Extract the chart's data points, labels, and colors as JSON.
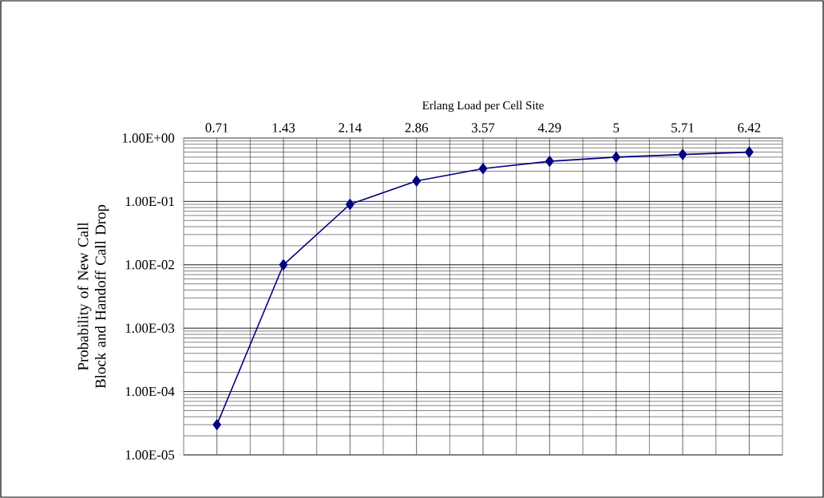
{
  "chart_data": {
    "type": "line",
    "xlabel": "Erlang Load per Cell Site",
    "ylabel": "Probability of New Call Block and Handoff Call Drop",
    "categories": [
      "0.71",
      "1.43",
      "2.14",
      "2.86",
      "3.57",
      "4.29",
      "5",
      "5.71",
      "6.42"
    ],
    "series": [
      {
        "color": "#000080",
        "values": [
          3e-05,
          0.01,
          0.09,
          0.21,
          0.33,
          0.43,
          0.5,
          0.55,
          0.6
        ]
      }
    ],
    "log": "y",
    "ylim": [
      1e-05,
      1
    ],
    "yticks": [
      {
        "value": 1e-05,
        "label": "1.00E-05"
      },
      {
        "value": 0.0001,
        "label": "1.00E-04"
      },
      {
        "value": 0.001,
        "label": "1.00E-03"
      },
      {
        "value": 0.01,
        "label": "1.00E-02"
      },
      {
        "value": 0.1,
        "label": "1.00E-01"
      },
      {
        "value": 1,
        "label": "1.00E+00"
      }
    ],
    "grid": true,
    "marker": "diamond",
    "line_style": "solid"
  }
}
